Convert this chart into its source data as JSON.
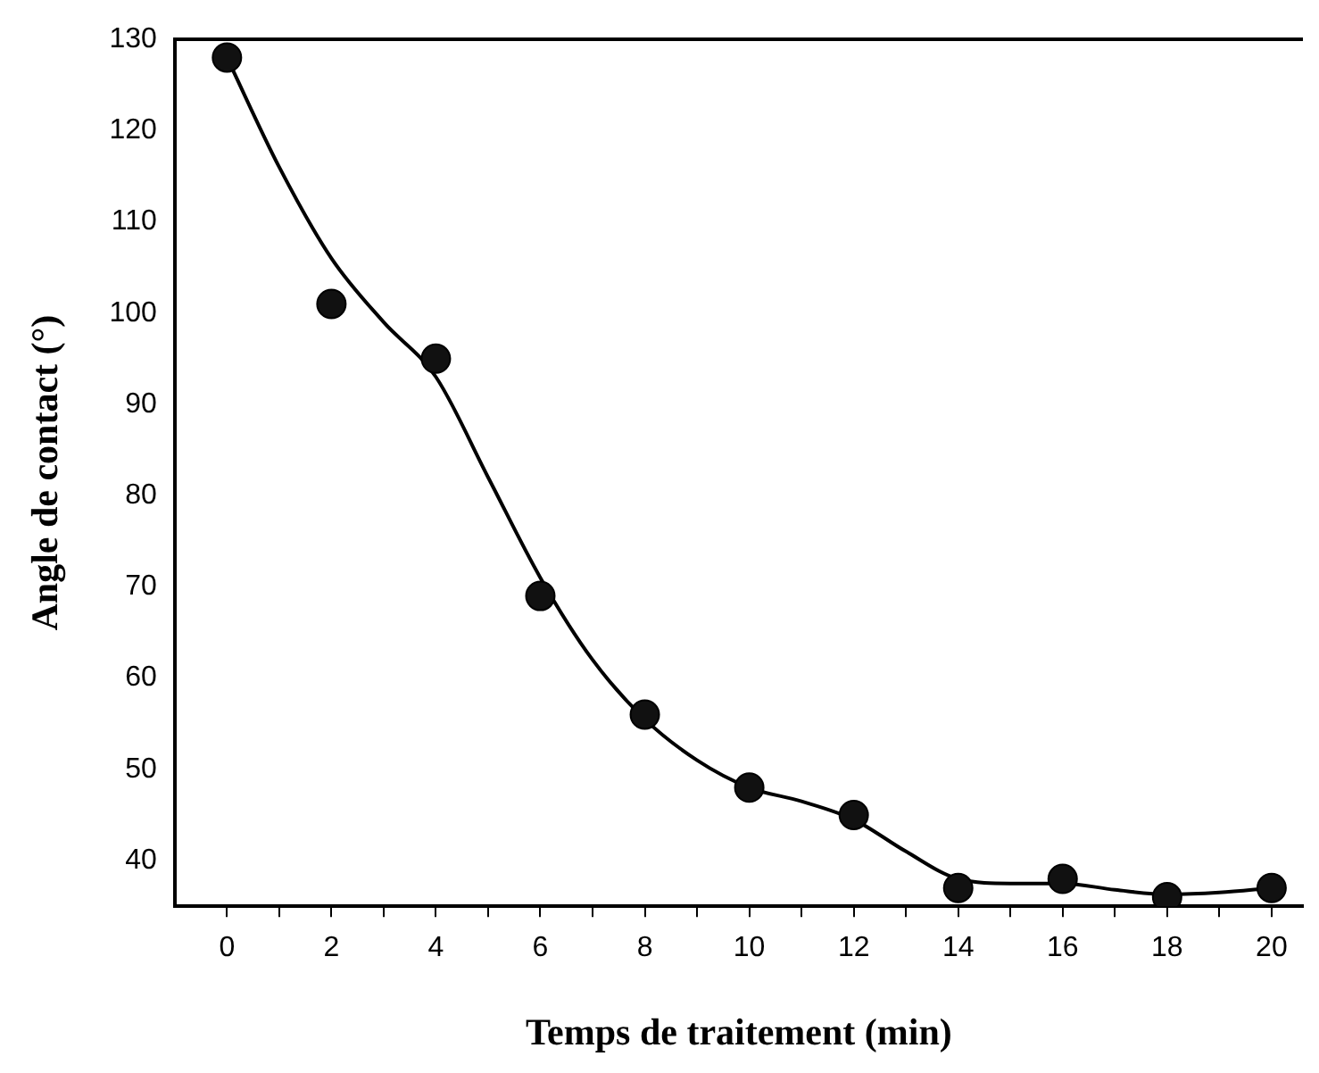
{
  "chart_data": {
    "type": "scatter",
    "xlabel": "Temps de traitement (min)",
    "ylabel": "Angle de contact (°)",
    "x": [
      0,
      2,
      4,
      6,
      8,
      10,
      12,
      14,
      16,
      18,
      20
    ],
    "series": [
      {
        "type": "scatter",
        "color": "#111111",
        "marker": "circle",
        "values": [
          128,
          101,
          95,
          69,
          56,
          48,
          45,
          37,
          38,
          36,
          37
        ]
      },
      {
        "type": "line",
        "color": "#000000",
        "marker": "none",
        "line_style": "solid",
        "x": [
          0,
          1,
          2,
          3,
          4,
          5,
          6,
          7,
          8,
          9,
          10,
          11,
          12,
          13,
          14,
          15,
          16,
          17,
          18,
          19,
          20
        ],
        "values": [
          128,
          116,
          106,
          99,
          93,
          82,
          71,
          62,
          55.5,
          51,
          48,
          46.5,
          44.5,
          41,
          38,
          37.5,
          37.5,
          36.8,
          36.3,
          36.5,
          37
        ]
      }
    ],
    "xlim": [
      -1,
      20.6
    ],
    "ylim": [
      35,
      130
    ],
    "xticks": [
      0,
      {
        "value": 1,
        "label": null
      },
      2,
      {
        "value": 3,
        "label": null
      },
      4,
      {
        "value": 5,
        "label": null
      },
      6,
      {
        "value": 7,
        "label": null
      },
      8,
      {
        "value": 9,
        "label": null
      },
      10,
      {
        "value": 11,
        "label": null
      },
      12,
      {
        "value": 13,
        "label": null
      },
      14,
      {
        "value": 15,
        "label": null
      },
      16,
      {
        "value": 17,
        "label": null
      },
      18,
      {
        "value": 19,
        "label": null
      },
      20
    ],
    "yticks": [
      40,
      50,
      60,
      70,
      80,
      90,
      100,
      110,
      120,
      130
    ],
    "grid": false,
    "legend": false
  }
}
